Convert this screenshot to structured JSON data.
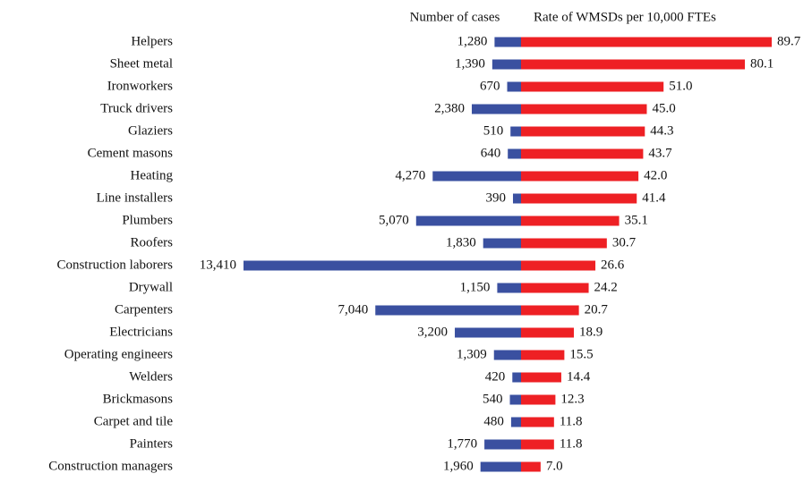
{
  "chart_data": {
    "type": "bar",
    "categories": [
      "Helpers",
      "Sheet metal",
      "Ironworkers",
      "Truck drivers",
      "Glaziers",
      "Cement masons",
      "Heating",
      "Line installers",
      "Plumbers",
      "Roofers",
      "Construction laborers",
      "Drywall",
      "Carpenters",
      "Electricians",
      "Operating engineers",
      "Welders",
      "Brickmasons",
      "Carpet and tile",
      "Painters",
      "Construction managers"
    ],
    "series": [
      {
        "name": "Number of cases",
        "color": "#3a50a0",
        "values": [
          1280,
          1390,
          670,
          2380,
          510,
          640,
          4270,
          390,
          5070,
          1830,
          13410,
          1150,
          7040,
          3200,
          1309,
          420,
          540,
          480,
          1770,
          1960
        ],
        "value_labels": [
          "1,280",
          "1,390",
          "670",
          "2,380",
          "510",
          "640",
          "4,270",
          "390",
          "5,070",
          "1,830",
          "13,410",
          "1,150",
          "7,040",
          "3,200",
          "1,309",
          "420",
          "540",
          "480",
          "1,770",
          "1,960"
        ]
      },
      {
        "name": "Rate of WMSDs per 10,000 FTEs",
        "color": "#ee2024",
        "values": [
          89.7,
          80.1,
          51.0,
          45.0,
          44.3,
          43.7,
          42.0,
          41.4,
          35.1,
          30.7,
          26.6,
          24.2,
          20.7,
          18.9,
          15.5,
          14.4,
          12.3,
          11.8,
          11.8,
          7.0
        ],
        "value_labels": [
          "89.7",
          "80.1",
          "51.0",
          "45.0",
          "44.3",
          "43.7",
          "42.0",
          "41.4",
          "35.1",
          "30.7",
          "26.6",
          "24.2",
          "20.7",
          "18.9",
          "15.5",
          "14.4",
          "12.3",
          "11.8",
          "11.8",
          "7.0"
        ]
      }
    ]
  }
}
